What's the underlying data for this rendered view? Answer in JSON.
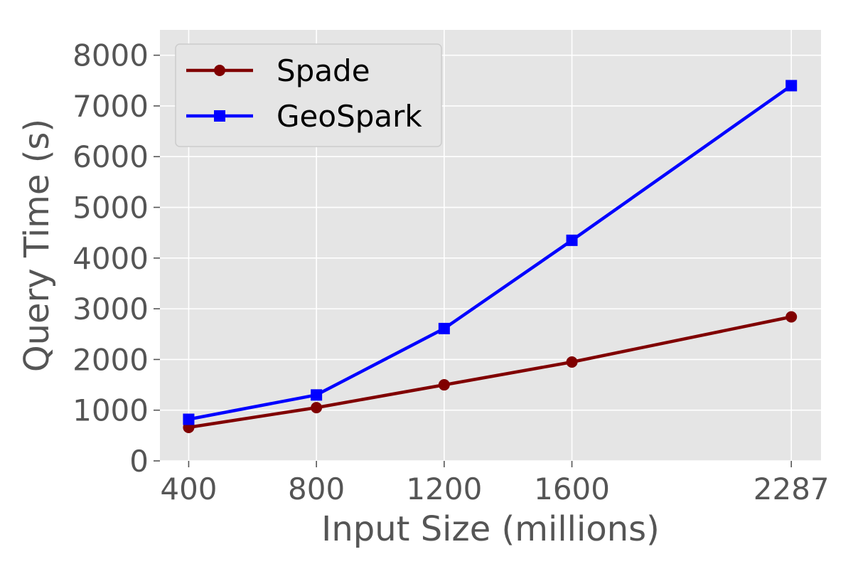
{
  "chart_data": {
    "type": "line",
    "title": "",
    "xlabel": "Input Size (millions)",
    "ylabel": "Query Time (s)",
    "x": [
      400,
      800,
      1200,
      1600,
      2287
    ],
    "x_tick_labels": [
      "400",
      "800",
      "1200",
      "1600",
      "2287"
    ],
    "y_ticks": [
      0,
      1000,
      2000,
      3000,
      4000,
      5000,
      6000,
      7000,
      8000
    ],
    "y_tick_labels": [
      "0",
      "1000",
      "2000",
      "3000",
      "4000",
      "5000",
      "6000",
      "7000",
      "8000"
    ],
    "xlim": [
      310,
      2380
    ],
    "ylim": [
      0,
      8500
    ],
    "grid": true,
    "legend_position": "top-left",
    "background_color": "#e5e5e5",
    "grid_color": "#ffffff",
    "series": [
      {
        "name": "Spade",
        "values": [
          660,
          1050,
          1500,
          1950,
          2840
        ],
        "color": "#800000",
        "marker": "circle"
      },
      {
        "name": "GeoSpark",
        "values": [
          820,
          1300,
          2610,
          4350,
          7400
        ],
        "color": "#0000ff",
        "marker": "square"
      }
    ]
  }
}
